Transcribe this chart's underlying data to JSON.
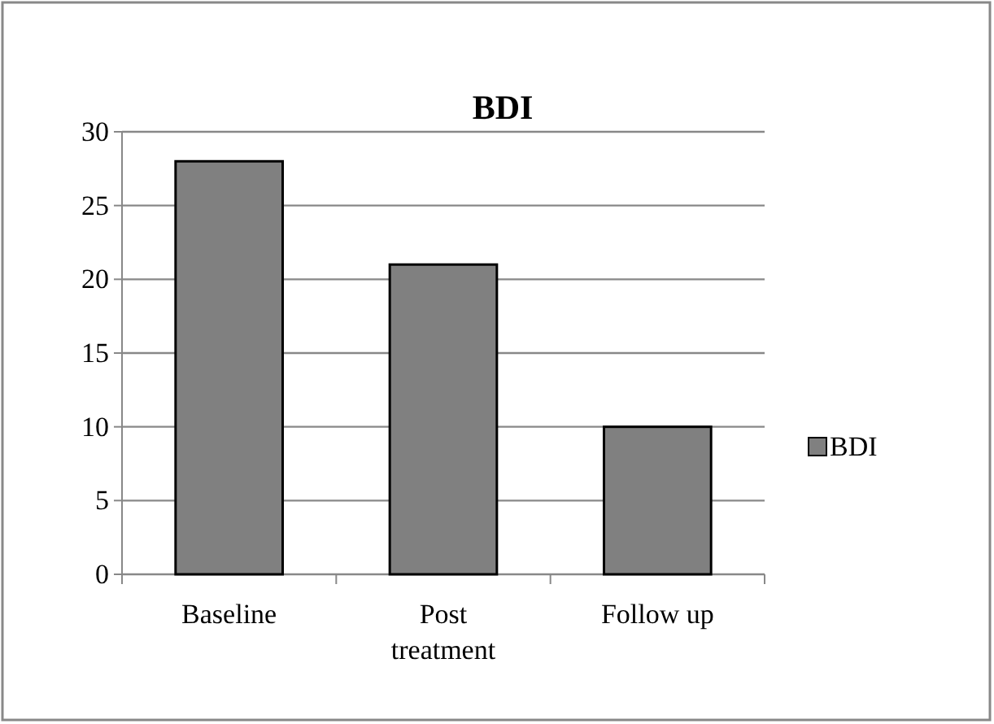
{
  "chart_data": {
    "type": "bar",
    "title": "BDI",
    "categories": [
      "Baseline",
      "Post treatment",
      "Follow up"
    ],
    "series": [
      {
        "name": "BDI",
        "color": "#808080",
        "values": [
          28,
          21,
          10
        ]
      }
    ],
    "ylim": [
      0,
      30
    ],
    "yticks": [
      0,
      5,
      10,
      15,
      20,
      25,
      30
    ],
    "grid": "y",
    "legend": "right"
  }
}
